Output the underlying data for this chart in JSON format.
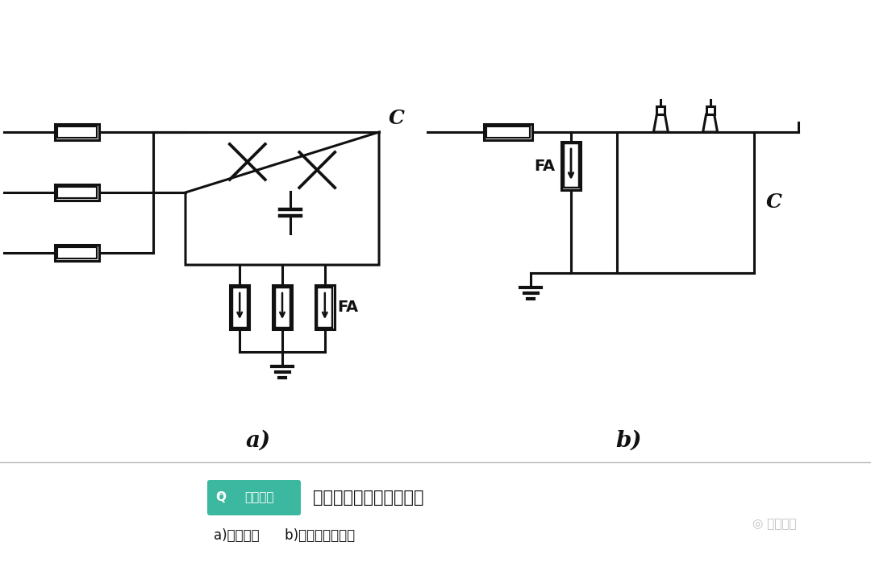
{
  "bg_color": "#ffffff",
  "line_color": "#111111",
  "label_a": "a)",
  "label_b": "b)",
  "FA_label": "FA",
  "C_label_a": "C",
  "C_label_b": "C",
  "title_text": "线路移相电容器保护接线",
  "subtitle_text": "a)接线方法      b)避雷器安装方法",
  "brand_text": "电工知库",
  "brand_text2": "电工知库",
  "brand_color": "#3db8a0",
  "lw": 2.2,
  "lw_thick": 3.0
}
